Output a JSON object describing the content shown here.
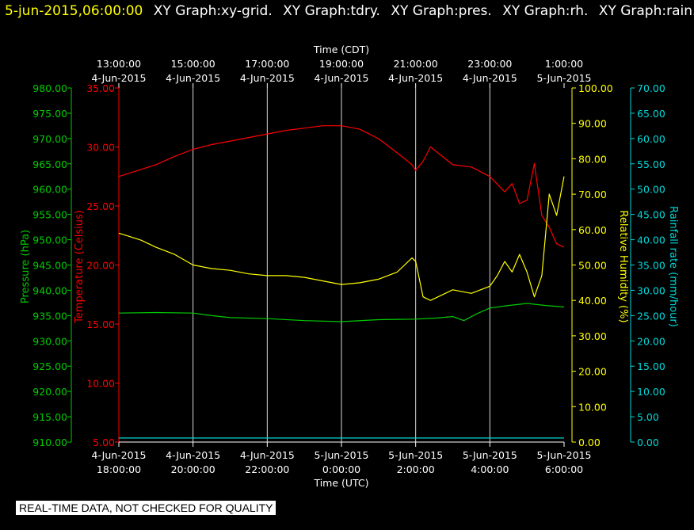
{
  "header": {
    "timestamp": "5-jun-2015,06:00:00",
    "graphs": [
      "XY Graph:xy-grid.",
      "XY Graph:tdry.",
      "XY Graph:pres.",
      "XY Graph:rh.",
      "XY Graph:rain."
    ]
  },
  "footer": {
    "quality_note": "REAL-TIME DATA, NOT CHECKED FOR QUALITY"
  },
  "colors": {
    "pressure": "#00cc00",
    "temperature": "#ff0000",
    "humidity": "#ffff00",
    "rain": "#00d8d8",
    "grid": "#ffffff"
  },
  "chart_data": {
    "type": "line",
    "x_top": {
      "label": "Time (CDT)",
      "ticks": [
        [
          "13:00:00",
          "4-Jun-2015"
        ],
        [
          "15:00:00",
          "4-Jun-2015"
        ],
        [
          "17:00:00",
          "4-Jun-2015"
        ],
        [
          "19:00:00",
          "4-Jun-2015"
        ],
        [
          "21:00:00",
          "4-Jun-2015"
        ],
        [
          "23:00:00",
          "4-Jun-2015"
        ],
        [
          "1:00:00",
          "5-Jun-2015"
        ]
      ]
    },
    "x_bottom": {
      "label": "Time (UTC)",
      "ticks": [
        [
          "4-Jun-2015",
          "18:00:00"
        ],
        [
          "4-Jun-2015",
          "20:00:00"
        ],
        [
          "4-Jun-2015",
          "22:00:00"
        ],
        [
          "5-Jun-2015",
          "0:00:00"
        ],
        [
          "5-Jun-2015",
          "2:00:00"
        ],
        [
          "5-Jun-2015",
          "4:00:00"
        ],
        [
          "5-Jun-2015",
          "6:00:00"
        ]
      ]
    },
    "xlim_utc": [
      "2015-06-04T18:00:00",
      "2015-06-05T06:00:00"
    ],
    "axes": {
      "pressure": {
        "label": "Pressure (hPa)",
        "ylim": [
          910,
          980
        ],
        "ticks": [
          "910.00",
          "915.00",
          "920.00",
          "925.00",
          "930.00",
          "935.00",
          "940.00",
          "945.00",
          "950.00",
          "955.00",
          "960.00",
          "965.00",
          "970.00",
          "975.00",
          "980.00"
        ]
      },
      "temperature": {
        "label": "Temperature (Celsius)",
        "ylim": [
          5,
          35
        ],
        "ticks": [
          "5.00",
          "10.00",
          "15.00",
          "20.00",
          "25.00",
          "30.00",
          "35.00"
        ]
      },
      "humidity": {
        "label": "Relative Humidity (%)",
        "ylim": [
          0,
          100
        ],
        "ticks": [
          "0.00",
          "10.00",
          "20.00",
          "30.00",
          "40.00",
          "50.00",
          "60.00",
          "70.00",
          "80.00",
          "90.00",
          "100.00"
        ]
      },
      "rain": {
        "label": "Rainfall rate (mm/hour)",
        "ylim": [
          0,
          70
        ],
        "ticks": [
          "0.00",
          "5.00",
          "10.00",
          "15.00",
          "20.00",
          "25.00",
          "30.00",
          "35.00",
          "40.00",
          "45.00",
          "50.00",
          "55.00",
          "60.00",
          "65.00",
          "70.00"
        ]
      }
    },
    "series": [
      {
        "name": "tdry",
        "axis": "temperature",
        "x_hours_utc": [
          18,
          18.5,
          19,
          19.5,
          20,
          20.5,
          21,
          21.5,
          22,
          22.5,
          23,
          23.5,
          24,
          24.5,
          25,
          25.5,
          25.9,
          26,
          26.2,
          26.4,
          26.8,
          27,
          27.5,
          28,
          28.4,
          28.6,
          28.8,
          29,
          29.2,
          29.4,
          29.6,
          29.8,
          30
        ],
        "values": [
          27.5,
          28,
          28.5,
          29.2,
          29.8,
          30.2,
          30.5,
          30.8,
          31.1,
          31.4,
          31.6,
          31.8,
          31.8,
          31.5,
          30.7,
          29.5,
          28.5,
          28,
          28.8,
          30,
          29,
          28.5,
          28.3,
          27.5,
          26.2,
          26.9,
          25.2,
          25.5,
          28.6,
          24.2,
          23.2,
          21.8,
          21.5
        ]
      },
      {
        "name": "rh",
        "axis": "humidity",
        "x_hours_utc": [
          18,
          18.3,
          18.6,
          19,
          19.5,
          20,
          20.5,
          21,
          21.5,
          22,
          22.5,
          23,
          23.5,
          24,
          24.5,
          25,
          25.5,
          25.9,
          26,
          26.2,
          26.4,
          26.8,
          27,
          27.5,
          28,
          28.2,
          28.4,
          28.6,
          28.8,
          29,
          29.2,
          29.4,
          29.6,
          29.8,
          30
        ],
        "values": [
          59,
          58,
          57,
          55,
          53,
          50,
          49,
          48.5,
          47.5,
          47,
          47,
          46.5,
          45.5,
          44.5,
          45,
          46,
          48,
          52,
          51,
          41,
          40,
          42,
          43,
          42,
          44,
          47,
          51,
          48,
          53,
          48,
          41,
          47,
          70,
          64,
          75
        ]
      },
      {
        "name": "pres",
        "axis": "pressure",
        "x_hours_utc": [
          18,
          19,
          20,
          20.5,
          21,
          22,
          23,
          24,
          25,
          26,
          26.5,
          27,
          27.3,
          27.6,
          28,
          28.5,
          29,
          29.5,
          30
        ],
        "values": [
          935.5,
          935.6,
          935.5,
          935.0,
          934.6,
          934.4,
          934.0,
          933.8,
          934.2,
          934.3,
          934.5,
          934.8,
          934.0,
          935.2,
          936.5,
          937.0,
          937.4,
          937.0,
          936.7
        ]
      },
      {
        "name": "rain",
        "axis": "rain",
        "x_hours_utc": [
          18,
          30
        ],
        "values": [
          0.8,
          0.8
        ]
      }
    ],
    "grid": true
  }
}
